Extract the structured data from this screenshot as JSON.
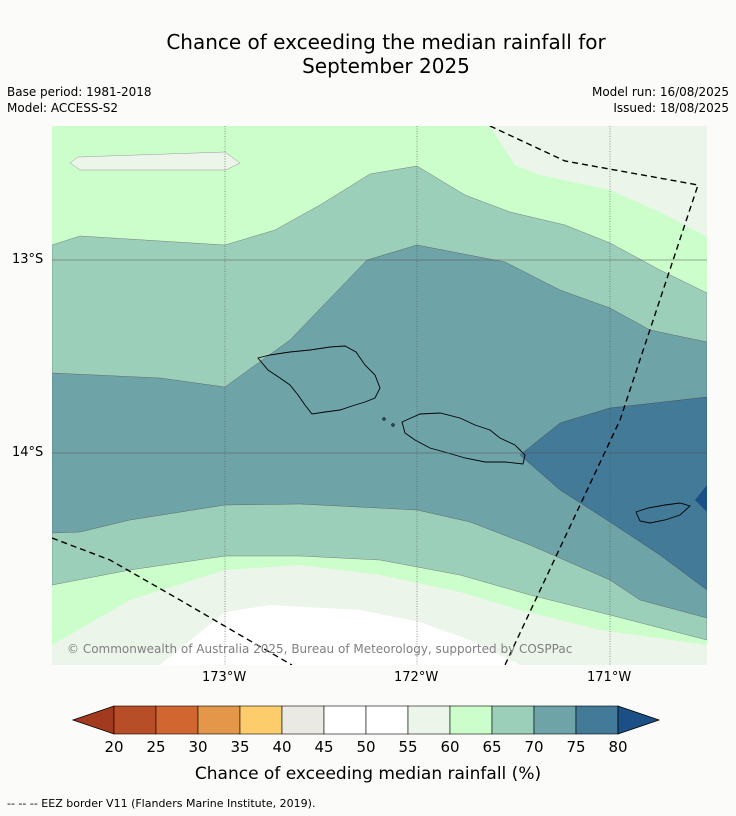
{
  "title_line1": "Chance of exceeding the median rainfall for",
  "title_line2": "September 2025",
  "base_period": "Base period: 1981-2018",
  "model": "Model: ACCESS-S2",
  "model_run": "Model run: 16/08/2025",
  "issued": "Issued: 18/08/2025",
  "lat_labels": [
    "13°S",
    "14°S"
  ],
  "lon_labels": [
    "173°W",
    "172°W",
    "171°W"
  ],
  "copyright": "© Commonwealth of Australia 2025, Bureau of Meteorology, supported by COSPPac",
  "colorbar": {
    "label": "Chance of exceeding median rainfall (%)",
    "ticks": [
      "20",
      "25",
      "30",
      "35",
      "40",
      "45",
      "50",
      "55",
      "60",
      "65",
      "70",
      "75",
      "80"
    ],
    "colors": [
      "#a23a20",
      "#b84e27",
      "#d16630",
      "#e49649",
      "#fecd6b",
      "#ebe9e4",
      "#ffffff",
      "#ffffff",
      "#ebf5e9",
      "#ccfecb",
      "#9ccfb9",
      "#6ea3a8",
      "#427a98",
      "#1b4f85"
    ]
  },
  "legend_note": "-- -- -- EEZ border V11 (Flanders Marine Institute, 2019)."
}
